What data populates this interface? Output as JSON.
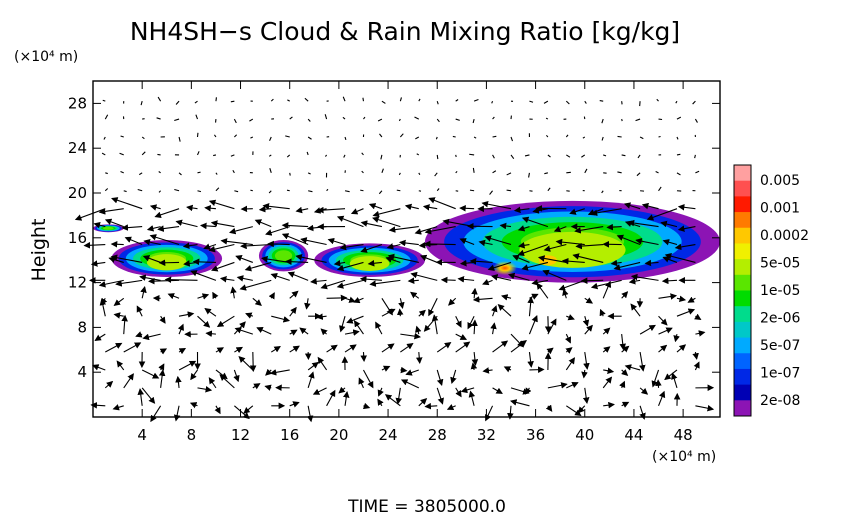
{
  "chart_data": {
    "type": "heatmap",
    "title": "NH4SH−s Cloud & Rain Mixing Ratio [kg/kg]",
    "y_unit_label": "(×10⁴ m)",
    "x_unit_label": "(×10⁴ m)",
    "ylabel": "Height",
    "xlabel": "",
    "footer": "TIME = 3805000.0",
    "xlim": [
      0,
      51
    ],
    "ylim": [
      0,
      30
    ],
    "x_ticks": [
      4,
      8,
      12,
      16,
      20,
      24,
      28,
      32,
      36,
      40,
      44,
      48
    ],
    "y_ticks": [
      4,
      8,
      12,
      16,
      20,
      24,
      28
    ],
    "x_tick_labels": [
      "4",
      "8",
      "12",
      "16",
      "20",
      "24",
      "28",
      "32",
      "36",
      "40",
      "44",
      "48"
    ],
    "y_tick_labels": [
      "4",
      "8",
      "12",
      "16",
      "20",
      "24",
      "28"
    ],
    "colorbar": {
      "labels": [
        "0.005",
        "0.001",
        "0.0002",
        "5e-05",
        "1e-05",
        "2e-06",
        "5e-07",
        "1e-07",
        "2e-08"
      ],
      "colors": [
        "#ffa0a0",
        "#ff5050",
        "#ff1a00",
        "#ff7a00",
        "#ffc800",
        "#f0f000",
        "#b4ee00",
        "#5ae600",
        "#00dc00",
        "#00dc8c",
        "#00c8c8",
        "#00aaff",
        "#0064ff",
        "#0028e6",
        "#0000b4",
        "#8c14b4"
      ]
    },
    "cloud_bands": [
      {
        "x0": 1.5,
        "x1": 10.5,
        "y0": 12.5,
        "y1": 15.8,
        "core": "5e-05"
      },
      {
        "x0": 13.5,
        "x1": 17.5,
        "y0": 13.0,
        "y1": 15.8,
        "core": "1e-05"
      },
      {
        "x0": 18,
        "x1": 27,
        "y0": 12.5,
        "y1": 15.5,
        "core": "5e-05"
      },
      {
        "x0": 27,
        "x1": 51,
        "y0": 12.0,
        "y1": 19.3,
        "core": "0.001"
      },
      {
        "x0": 0,
        "x1": 2.5,
        "y0": 16.5,
        "y1": 17.2,
        "core": "2e-06"
      }
    ],
    "wind_field": "velocity vectors"
  }
}
